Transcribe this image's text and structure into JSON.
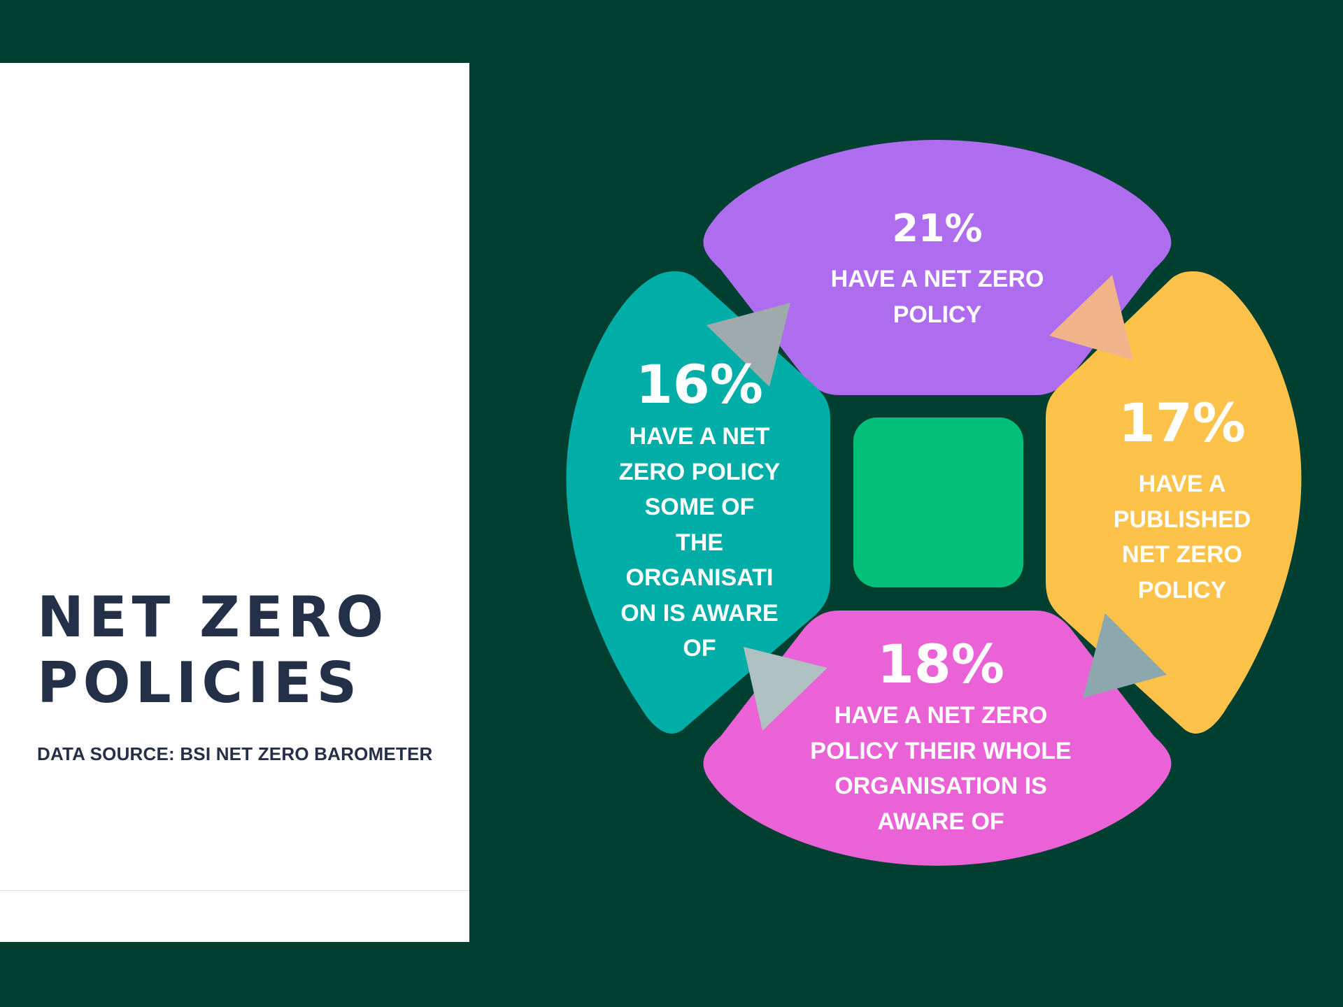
{
  "title": "NET ZERO\nPOLICIES",
  "data_source": "DATA SOURCE: BSI NET ZERO BAROMETER",
  "colors": {
    "background": "#013f31",
    "panel": "#ffffff",
    "title_text": "#243048",
    "segment_top": "#ae6cee",
    "segment_right": "#fdc24a",
    "segment_bottom": "#eb62d6",
    "segment_left": "#00aea7",
    "center_square": "#02bf7a",
    "arrow_top_right": "#f0b38a",
    "arrow_right_bottom": "#8da7ae",
    "arrow_bottom_left": "#aec0bf",
    "arrow_left_top": "#9eaaac"
  },
  "segments": {
    "top": {
      "percent": "21%",
      "label": "HAVE A NET ZERO\nPOLICY"
    },
    "right": {
      "percent": "17%",
      "label": "HAVE A\nPUBLISHED\nNET ZERO\nPOLICY"
    },
    "bottom": {
      "percent": "18%",
      "label": "HAVE A NET ZERO\nPOLICY THEIR WHOLE\nORGANISATION IS\nAWARE OF"
    },
    "left": {
      "percent": "16%",
      "label": "HAVE A NET\nZERO POLICY\nSOME OF\nTHE\nORGANISATI\nON IS AWARE\nOF"
    }
  },
  "arrow_icons": [
    "arrow-top-to-right-icon",
    "arrow-right-to-bottom-icon",
    "arrow-bottom-to-left-icon",
    "arrow-left-to-top-icon"
  ]
}
